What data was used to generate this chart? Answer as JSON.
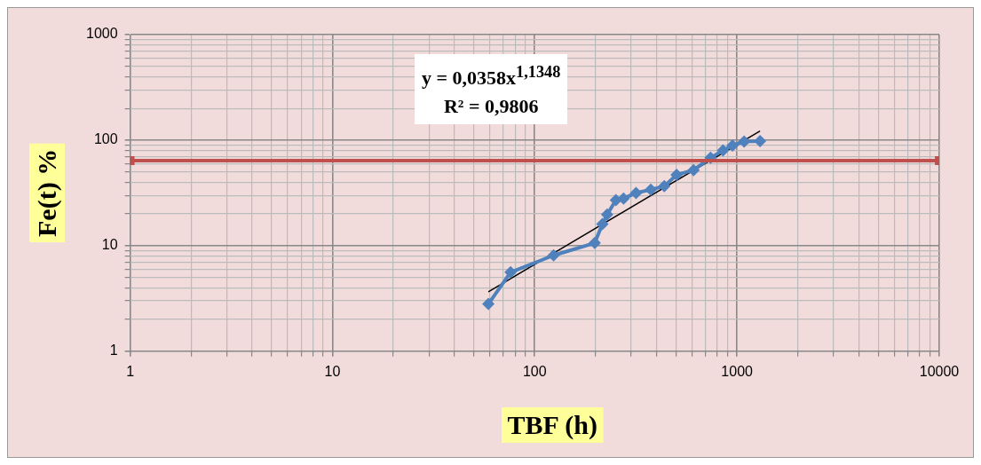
{
  "chart_data": {
    "type": "line",
    "xlabel": "TBF (h)",
    "ylabel": "Fe(t) %",
    "log": "xy",
    "grid": true,
    "legend": false,
    "xlim": [
      1,
      10000
    ],
    "ylim": [
      1,
      1000
    ],
    "xticks": [
      1,
      {
        "value": 2,
        "label": null
      },
      {
        "value": 3,
        "label": null
      },
      {
        "value": 4,
        "label": null
      },
      {
        "value": 5,
        "label": null
      },
      {
        "value": 6,
        "label": null
      },
      {
        "value": 7,
        "label": null
      },
      {
        "value": 8,
        "label": null
      },
      {
        "value": 9,
        "label": null
      },
      10,
      {
        "value": 20,
        "label": null
      },
      {
        "value": 30,
        "label": null
      },
      {
        "value": 40,
        "label": null
      },
      {
        "value": 50,
        "label": null
      },
      {
        "value": 60,
        "label": null
      },
      {
        "value": 70,
        "label": null
      },
      {
        "value": 80,
        "label": null
      },
      {
        "value": 90,
        "label": null
      },
      100,
      {
        "value": 200,
        "label": null
      },
      {
        "value": 300,
        "label": null
      },
      {
        "value": 400,
        "label": null
      },
      {
        "value": 500,
        "label": null
      },
      {
        "value": 600,
        "label": null
      },
      {
        "value": 700,
        "label": null
      },
      {
        "value": 800,
        "label": null
      },
      {
        "value": 900,
        "label": null
      },
      1000,
      {
        "value": 2000,
        "label": null
      },
      {
        "value": 3000,
        "label": null
      },
      {
        "value": 4000,
        "label": null
      },
      {
        "value": 5000,
        "label": null
      },
      {
        "value": 6000,
        "label": null
      },
      {
        "value": 7000,
        "label": null
      },
      {
        "value": 8000,
        "label": null
      },
      {
        "value": 9000,
        "label": null
      },
      10000
    ],
    "yticks": [
      1,
      {
        "value": 2,
        "label": null
      },
      {
        "value": 3,
        "label": null
      },
      {
        "value": 4,
        "label": null
      },
      {
        "value": 5,
        "label": null
      },
      {
        "value": 6,
        "label": null
      },
      {
        "value": 7,
        "label": null
      },
      {
        "value": 8,
        "label": null
      },
      {
        "value": 9,
        "label": null
      },
      10,
      {
        "value": 20,
        "label": null
      },
      {
        "value": 30,
        "label": null
      },
      {
        "value": 40,
        "label": null
      },
      {
        "value": 50,
        "label": null
      },
      {
        "value": 60,
        "label": null
      },
      {
        "value": 70,
        "label": null
      },
      {
        "value": 80,
        "label": null
      },
      {
        "value": 90,
        "label": null
      },
      100,
      {
        "value": 200,
        "label": null
      },
      {
        "value": 300,
        "label": null
      },
      {
        "value": 400,
        "label": null
      },
      {
        "value": 500,
        "label": null
      },
      {
        "value": 600,
        "label": null
      },
      {
        "value": 700,
        "label": null
      },
      {
        "value": 800,
        "label": null
      },
      {
        "value": 900,
        "label": null
      },
      1000
    ],
    "annotations": [
      "y = 0,0358x$^{1,1348}$",
      "R² = 0,9806"
    ],
    "series": [
      {
        "color": "#c0504d",
        "marker": "square",
        "x": [
          1,
          10000
        ],
        "values": [
          64,
          64
        ]
      },
      {
        "color": "#4f81bd",
        "marker": "diamond",
        "x": [
          59,
          76,
          124,
          198,
          216,
          228,
          252,
          275,
          317,
          375,
          437,
          503,
          610,
          740,
          853,
          950,
          1085,
          1300
        ],
        "values": [
          2.8,
          5.6,
          8.1,
          10.6,
          16,
          19.7,
          27,
          28,
          31.6,
          34,
          36.6,
          47,
          52,
          68,
          80,
          89,
          97,
          98
        ]
      },
      {
        "color": "#000000",
        "marker": "none",
        "x": [
          59,
          1300
        ],
        "values": [
          3.66,
          122.3
        ]
      }
    ]
  }
}
